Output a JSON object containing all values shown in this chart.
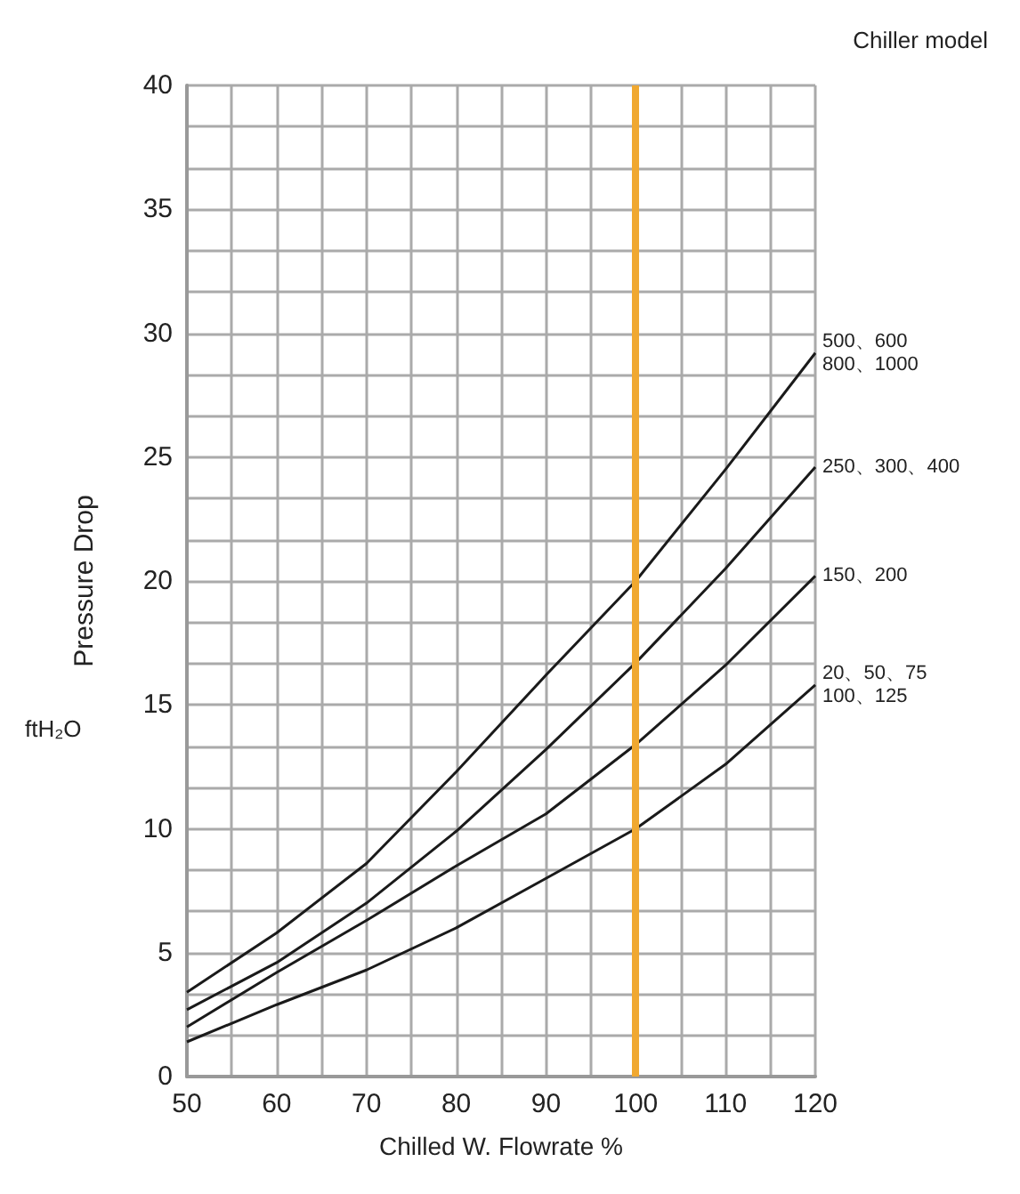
{
  "chart_data": {
    "type": "line",
    "xlabel": "Chilled W. Flowrate %",
    "ylabel": "Pressure Drop",
    "annotations": [
      "Chiller model",
      "ftH₂O"
    ],
    "x": [
      50,
      60,
      70,
      80,
      90,
      100,
      110,
      120
    ],
    "xlim": [
      50,
      120
    ],
    "xticks": [
      50,
      60,
      70,
      80,
      90,
      100,
      110,
      120
    ],
    "ylim": [
      0,
      40
    ],
    "yticks": [
      0,
      5,
      10,
      15,
      20,
      25,
      30,
      35,
      40
    ],
    "grid": true,
    "legend": false,
    "marker": "none",
    "line_style": "solid",
    "series": [
      {
        "name": "500、600\n800、1000",
        "color": "#1a1a1a",
        "values": [
          3.4,
          5.8,
          8.6,
          12.3,
          16.2,
          20,
          24.5,
          29.2
        ]
      },
      {
        "name": "250、300、400",
        "color": "#1a1a1a",
        "values": [
          2.7,
          4.6,
          7.0,
          9.9,
          13.2,
          16.7,
          20.5,
          24.6
        ]
      },
      {
        "name": "150、200",
        "color": "#1a1a1a",
        "values": [
          2.0,
          4.2,
          6.3,
          8.5,
          10.6,
          13.4,
          16.6,
          20.2
        ]
      },
      {
        "name": "20、50、75\n100、125",
        "color": "#1a1a1a",
        "values": [
          1.4,
          2.9,
          4.3,
          6.0,
          8.0,
          10,
          12.6,
          15.8
        ]
      }
    ],
    "ref_lines": [
      {
        "axis": "x",
        "value": 100,
        "color": "#f0a830"
      }
    ]
  }
}
